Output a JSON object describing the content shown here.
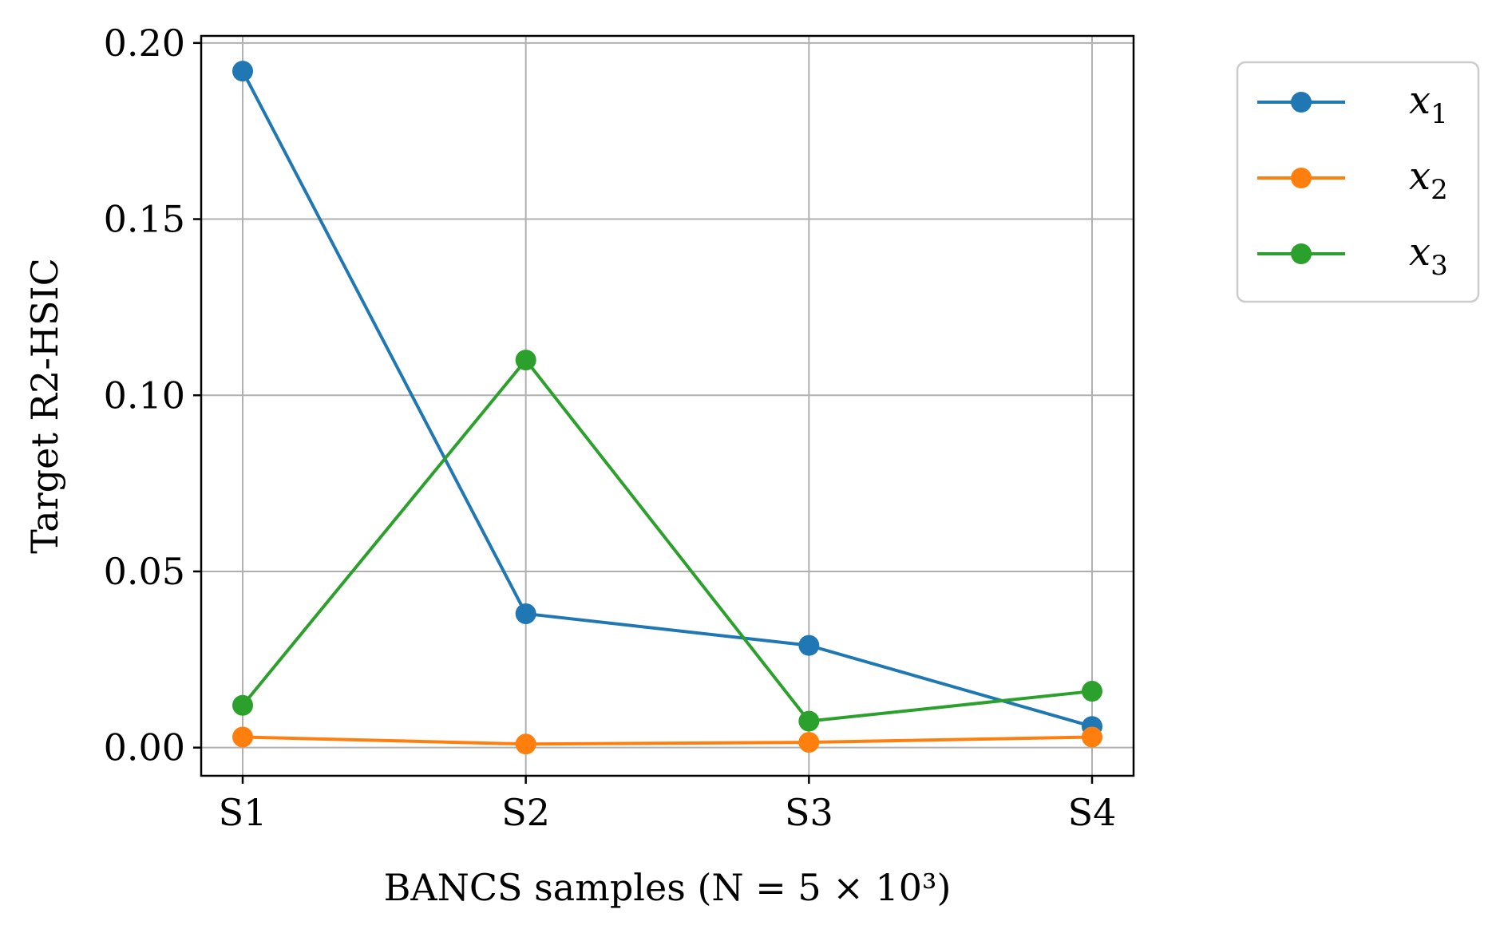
{
  "chart_data": {
    "type": "line",
    "categories": [
      "S1",
      "S2",
      "S3",
      "S4"
    ],
    "xlabel": "BANCS samples (N = 5 × 10³)",
    "ylabel": "Target R2-HSIC",
    "ylim": [
      -0.008,
      0.202
    ],
    "yticks": [
      "0.00",
      "0.05",
      "0.10",
      "0.15",
      "0.20"
    ],
    "ytick_values": [
      0.0,
      0.05,
      0.1,
      0.15,
      0.2
    ],
    "grid": true,
    "legend_position": "outside-right",
    "series": [
      {
        "name": "x",
        "subscript": "1",
        "color": "#1f77b4",
        "values": [
          0.192,
          0.038,
          0.029,
          0.006
        ]
      },
      {
        "name": "x",
        "subscript": "2",
        "color": "#ff7f0e",
        "values": [
          0.003,
          0.001,
          0.0015,
          0.003
        ]
      },
      {
        "name": "x",
        "subscript": "3",
        "color": "#2ca02c",
        "values": [
          0.012,
          0.11,
          0.0075,
          0.016
        ]
      }
    ]
  }
}
